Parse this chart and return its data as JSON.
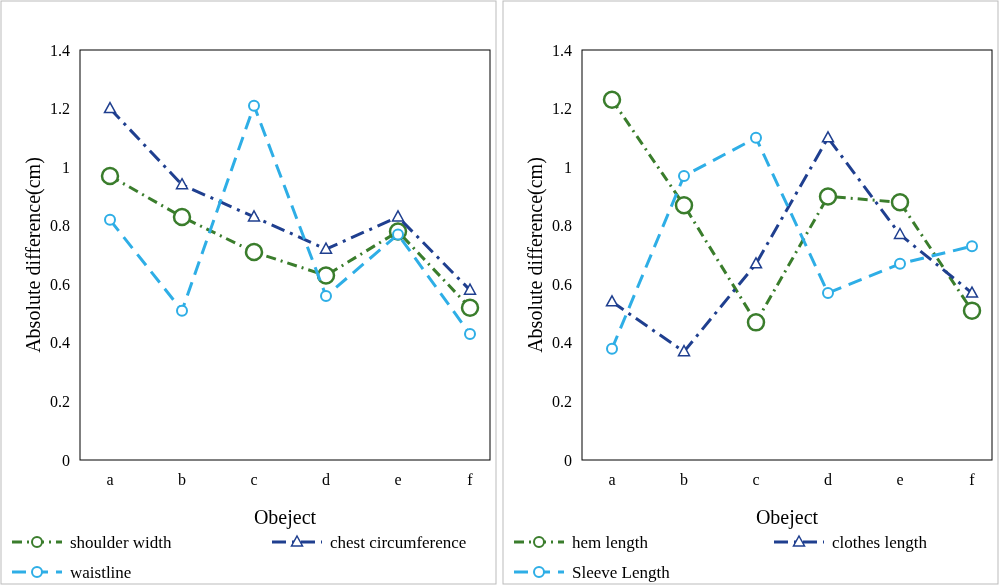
{
  "chart_data": [
    {
      "type": "line",
      "xlabel": "Obeject",
      "ylabel": "Absolute difference(cm)",
      "categories": [
        "a",
        "b",
        "c",
        "d",
        "e",
        "f"
      ],
      "ylim": [
        0,
        1.4
      ],
      "yticks": [
        0,
        0.2,
        0.4,
        0.6,
        0.8,
        1,
        1.2,
        1.4
      ],
      "grid": false,
      "legend": "bottom",
      "series": [
        {
          "name": "shoulder width",
          "color": "#3a7d2c",
          "marker": "circle",
          "line_style": "dashed",
          "values": [
            0.97,
            0.83,
            0.71,
            0.63,
            0.78,
            0.52
          ]
        },
        {
          "name": "chest circumference",
          "color": "#1f3f8f",
          "marker": "triangle",
          "line_style": "dashed",
          "values": [
            1.2,
            0.94,
            0.83,
            0.72,
            0.83,
            0.58
          ]
        },
        {
          "name": "waistline",
          "color": "#2eaee6",
          "marker": "circle",
          "line_style": "dashed",
          "values": [
            0.82,
            0.51,
            1.21,
            0.56,
            0.77,
            0.43
          ]
        }
      ]
    },
    {
      "type": "line",
      "xlabel": "Obeject",
      "ylabel": "Absolute difference(cm)",
      "categories": [
        "a",
        "b",
        "c",
        "d",
        "e",
        "f"
      ],
      "ylim": [
        0,
        1.4
      ],
      "yticks": [
        0,
        0.2,
        0.4,
        0.6,
        0.8,
        1,
        1.2,
        1.4
      ],
      "grid": false,
      "legend": "bottom",
      "series": [
        {
          "name": "hem length",
          "color": "#3a7d2c",
          "marker": "circle",
          "line_style": "dashed",
          "values": [
            1.23,
            0.87,
            0.47,
            0.9,
            0.88,
            0.51
          ]
        },
        {
          "name": "clothes length",
          "color": "#1f3f8f",
          "marker": "triangle",
          "line_style": "dashed",
          "values": [
            0.54,
            0.37,
            0.67,
            1.1,
            0.77,
            0.57
          ]
        },
        {
          "name": "Sleeve Length",
          "color": "#2eaee6",
          "marker": "circle",
          "line_style": "dashed",
          "values": [
            0.38,
            0.97,
            1.1,
            0.57,
            0.67,
            0.73
          ]
        }
      ]
    }
  ]
}
